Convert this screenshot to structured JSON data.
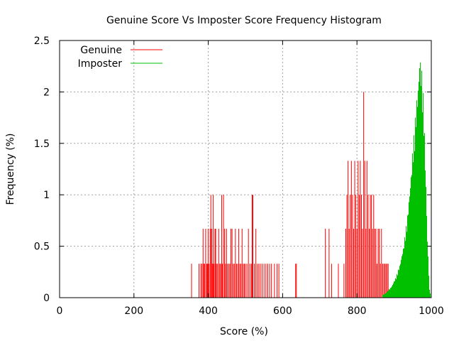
{
  "chart_data": {
    "type": "bar",
    "title": "Genuine Score Vs Imposter Score Frequency Histogram",
    "xlabel": "Score (%)",
    "ylabel": "Frequency (%)",
    "xlim": [
      0,
      1000
    ],
    "ylim": [
      0,
      2.5
    ],
    "x_ticks": [
      "0",
      "200",
      "400",
      "600",
      "800",
      "1000"
    ],
    "y_ticks": [
      "0",
      "0.5",
      "1",
      "1.5",
      "2",
      "2.5"
    ],
    "grid": true,
    "legend_position": "top-left",
    "series": [
      {
        "name": "Genuine",
        "color": "#ff0000",
        "x": [
          355,
          375,
          380,
          383,
          386,
          388,
          390,
          393,
          396,
          398,
          400,
          402,
          405,
          407,
          409,
          411,
          413,
          415,
          418,
          420,
          422,
          425,
          428,
          431,
          433,
          436,
          438,
          441,
          444,
          446,
          449,
          451,
          455,
          458,
          461,
          464,
          467,
          470,
          473,
          476,
          479,
          482,
          485,
          488,
          491,
          494,
          497,
          500,
          504,
          508,
          512,
          516,
          518,
          520,
          524,
          528,
          532,
          536,
          540,
          545,
          550,
          555,
          560,
          565,
          570,
          578,
          585,
          590,
          635,
          637,
          715,
          725,
          732,
          750,
          765,
          770,
          773,
          776,
          779,
          782,
          785,
          788,
          791,
          794,
          797,
          800,
          803,
          806,
          809,
          812,
          815,
          818,
          821,
          824,
          827,
          830,
          833,
          836,
          839,
          842,
          845,
          848,
          851,
          854,
          857,
          860,
          863,
          866,
          869,
          872,
          875,
          878,
          881,
          884
        ],
        "values": [
          0.33,
          0.33,
          0.33,
          0.33,
          0.67,
          0.33,
          0.33,
          0.67,
          0.33,
          0.33,
          0.67,
          0.33,
          0.67,
          1.0,
          0.67,
          0.33,
          1.0,
          0.33,
          0.67,
          0.67,
          0.33,
          0.33,
          0.67,
          0.33,
          0.33,
          1.0,
          0.33,
          1.0,
          0.67,
          0.33,
          0.67,
          0.33,
          0.33,
          0.33,
          0.67,
          0.67,
          0.33,
          0.33,
          0.67,
          0.33,
          0.33,
          0.67,
          0.33,
          0.33,
          0.67,
          0.33,
          0.33,
          0.33,
          0.33,
          0.67,
          0.33,
          0.33,
          1.0,
          1.0,
          0.33,
          0.67,
          0.33,
          0.33,
          0.33,
          0.33,
          0.33,
          0.33,
          0.33,
          0.33,
          0.33,
          0.33,
          0.33,
          0.33,
          0.33,
          0.33,
          0.67,
          0.67,
          0.33,
          0.33,
          0.33,
          0.67,
          1.0,
          1.33,
          0.67,
          1.0,
          1.33,
          1.0,
          0.67,
          1.33,
          1.0,
          0.67,
          1.33,
          1.0,
          1.33,
          1.0,
          0.67,
          2.0,
          1.33,
          0.67,
          1.33,
          1.0,
          0.67,
          1.0,
          1.0,
          0.67,
          1.0,
          0.67,
          0.67,
          0.33,
          0.67,
          0.67,
          0.33,
          0.67,
          0.33,
          0.33,
          0.33,
          0.33,
          0.33,
          0.33
        ]
      },
      {
        "name": "Imposter",
        "color": "#00c000",
        "x": [
          870,
          875,
          880,
          885,
          890,
          895,
          900,
          905,
          910,
          915,
          920,
          925,
          930,
          935,
          940,
          945,
          950,
          955,
          960,
          963,
          966,
          969,
          972,
          975,
          978,
          981,
          984,
          987,
          990,
          993,
          996
        ],
        "values": [
          0.03,
          0.04,
          0.06,
          0.08,
          0.1,
          0.13,
          0.17,
          0.21,
          0.27,
          0.33,
          0.42,
          0.52,
          0.66,
          0.8,
          1.0,
          1.22,
          1.48,
          1.7,
          1.95,
          2.05,
          2.2,
          2.34,
          2.25,
          2.1,
          1.9,
          1.6,
          1.2,
          0.8,
          0.45,
          0.2,
          0.05
        ]
      }
    ]
  }
}
